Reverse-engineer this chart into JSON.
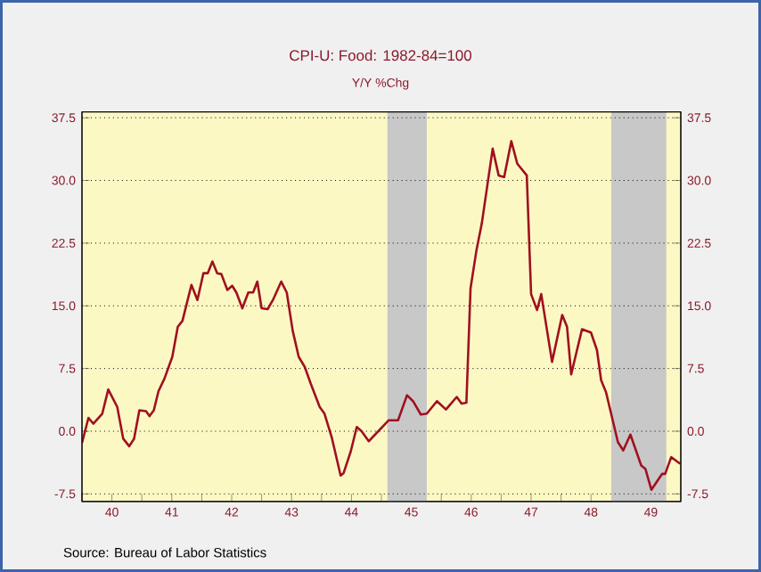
{
  "chart_data": {
    "type": "line",
    "title": "CPI-U: Food: 1982-84=100",
    "subtitle": "Y/Y %Chg",
    "annotations": [
      "Source:  Bureau of Labor Statistics"
    ],
    "series": [
      {
        "color": "#a01020",
        "x": [
          "1940-01-01",
          "1940-02-10",
          "1940-03-09",
          "1940-05-03",
          "1940-06-09",
          "1940-08-03",
          "1940-09-09",
          "1940-10-15",
          "1940-11-14",
          "1940-12-16",
          "1941-01-26",
          "1941-02-17",
          "1941-03-13",
          "1941-04-11",
          "1941-05-17",
          "1941-07-04",
          "1941-08-07",
          "1941-09-05",
          "1941-10-29",
          "1941-12-05",
          "1942-01-11",
          "1942-02-07",
          "1942-03-05",
          "1942-04-04",
          "1942-04-29",
          "1942-06-05",
          "1942-07-04",
          "1942-07-29",
          "1942-09-05",
          "1942-10-11",
          "1942-11-10",
          "1942-12-05",
          "1943-01-01",
          "1943-02-07",
          "1943-03-09",
          "1943-04-29",
          "1943-06-02",
          "1943-07-08",
          "1943-08-14",
          "1943-09-20",
          "1943-10-26",
          "1943-12-20",
          "1944-01-19",
          "1944-03-02",
          "1944-04-26",
          "1944-05-14",
          "1944-06-27",
          "1944-08-03",
          "1944-09-02",
          "1944-10-15",
          "1945-02-14",
          "1945-04-11",
          "1945-06-05",
          "1945-07-11",
          "1945-08-28",
          "1945-10-04",
          "1945-12-05",
          "1946-01-29",
          "1946-04-04",
          "1946-05-03",
          "1946-06-02",
          "1946-06-27",
          "1946-08-03",
          "1946-09-05",
          "1946-11-10",
          "1946-12-16",
          "1947-01-19",
          "1947-03-02",
          "1947-04-08",
          "1947-06-05",
          "1947-07-01",
          "1947-08-07",
          "1947-09-02",
          "1947-11-07",
          "1948-01-08",
          "1948-02-07",
          "1948-03-02",
          "1948-05-07",
          "1948-07-01",
          "1948-08-07",
          "1948-09-02",
          "1948-10-01",
          "1948-12-13",
          "1949-01-15",
          "1949-02-28",
          "1949-05-03",
          "1949-05-28",
          "1949-07-04",
          "1949-09-09",
          "1949-09-27",
          "1949-11-03",
          "1949-12-27"
        ],
        "values": [
          -1.4,
          1.6,
          0.9,
          2.1,
          5.0,
          2.9,
          -0.9,
          -1.8,
          -0.9,
          2.5,
          2.4,
          1.8,
          2.5,
          4.8,
          6.3,
          8.9,
          12.5,
          13.2,
          17.5,
          15.7,
          18.9,
          18.9,
          20.3,
          18.9,
          18.8,
          16.9,
          17.4,
          16.6,
          14.7,
          16.6,
          16.6,
          17.9,
          14.7,
          14.6,
          15.7,
          17.9,
          16.6,
          12.0,
          8.9,
          7.7,
          5.7,
          2.9,
          2.1,
          -0.7,
          -5.3,
          -5.0,
          -2.4,
          0.5,
          0.0,
          -1.2,
          1.3,
          1.3,
          4.3,
          3.6,
          2.0,
          2.1,
          3.6,
          2.6,
          4.1,
          3.3,
          3.4,
          17.1,
          21.7,
          24.9,
          33.8,
          30.6,
          30.4,
          34.7,
          32.0,
          30.6,
          16.4,
          14.5,
          16.4,
          8.3,
          13.9,
          12.5,
          6.8,
          12.2,
          11.8,
          9.7,
          6.1,
          4.7,
          -1.3,
          -2.3,
          -0.4,
          -4.1,
          -4.5,
          -7.0,
          -5.1,
          -5.1,
          -3.1,
          -3.9
        ]
      }
    ],
    "xlim": [
      "1940",
      "1950"
    ],
    "xticks": [
      {
        "value": "1940-01",
        "label": null
      },
      {
        "value": "1940-07",
        "label": "40"
      },
      {
        "value": "1941-01",
        "label": null
      },
      {
        "value": "1941-07",
        "label": "41"
      },
      {
        "value": "1942-01",
        "label": null
      },
      {
        "value": "1942-07",
        "label": "42"
      },
      {
        "value": "1943-01",
        "label": null
      },
      {
        "value": "1943-07",
        "label": "43"
      },
      {
        "value": "1944-01",
        "label": null
      },
      {
        "value": "1944-07",
        "label": "44"
      },
      {
        "value": "1945-01",
        "label": null
      },
      {
        "value": "1945-07",
        "label": "45"
      },
      {
        "value": "1946-01",
        "label": null
      },
      {
        "value": "1946-07",
        "label": "46"
      },
      {
        "value": "1947-01",
        "label": null
      },
      {
        "value": "1947-07",
        "label": "47"
      },
      {
        "value": "1948-01",
        "label": null
      },
      {
        "value": "1948-07",
        "label": "48"
      },
      {
        "value": "1949-01",
        "label": null
      },
      {
        "value": "1949-07",
        "label": "49"
      }
    ],
    "ylim": [
      -8.4,
      38.2
    ],
    "yticks": [
      {
        "value": -7.5,
        "label": "-7.5"
      },
      {
        "value": 0,
        "label": "0.0"
      },
      {
        "value": 7.5,
        "label": "7.5"
      },
      {
        "value": 15,
        "label": "15.0"
      },
      {
        "value": 22.5,
        "label": "22.5"
      },
      {
        "value": 30,
        "label": "30.0"
      },
      {
        "value": 37.5,
        "label": "37.5"
      }
    ],
    "y2lim": [
      -8.4,
      38.2
    ],
    "y2ticks": [
      {
        "value": -7.5,
        "label": "-7.5"
      },
      {
        "value": 0,
        "label": "0.0"
      },
      {
        "value": 7.5,
        "label": "7.5"
      },
      {
        "value": 15,
        "label": "15.0"
      },
      {
        "value": 22.5,
        "label": "22.5"
      },
      {
        "value": 30,
        "label": "30.0"
      },
      {
        "value": 37.5,
        "label": "37.5"
      }
    ],
    "bands": [
      {
        "axis": "x",
        "from": "1945-02-07",
        "to": "1945-10-04",
        "color": "#c8c8c8"
      },
      {
        "axis": "x",
        "from": "1948-11-03",
        "to": "1949-10-04",
        "color": "#c8c8c8"
      }
    ],
    "grid": "y",
    "marker": "none",
    "line_style": "solid"
  }
}
